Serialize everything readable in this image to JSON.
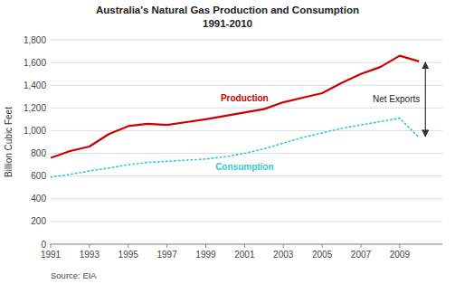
{
  "chart_data": {
    "type": "line",
    "title": "Australia's Natural Gas Production and Consumption",
    "subtitle": "1991-2010",
    "y_label": "Billion Cubic Feet",
    "source": "Source: EIA",
    "x": [
      1991,
      1992,
      1993,
      1994,
      1995,
      1996,
      1997,
      1998,
      1999,
      2000,
      2001,
      2002,
      2003,
      2004,
      2005,
      2006,
      2007,
      2008,
      2009,
      2010
    ],
    "series": [
      {
        "name": "Production",
        "color": "#CC0000",
        "line_style": "solid",
        "values": [
          760,
          820,
          860,
          970,
          1040,
          1060,
          1050,
          1075,
          1100,
          1130,
          1160,
          1190,
          1250,
          1290,
          1330,
          1420,
          1500,
          1560,
          1660,
          1610
        ]
      },
      {
        "name": "Consumption",
        "color": "#33CCCC",
        "line_style": "dotted",
        "values": [
          590,
          615,
          645,
          670,
          700,
          720,
          730,
          740,
          750,
          770,
          800,
          840,
          890,
          940,
          980,
          1020,
          1050,
          1080,
          1110,
          940
        ]
      }
    ],
    "annotations": [
      {
        "text": "Net Exports"
      }
    ],
    "xlim": [
      1991,
      2011.2
    ],
    "xticks": [
      1991,
      1993,
      1995,
      1997,
      1999,
      2001,
      2003,
      2005,
      2007,
      2009
    ],
    "ylim": [
      0,
      1800
    ],
    "yticks": [
      0,
      200,
      400,
      600,
      800,
      {
        "value": 1000,
        "label": "1,000"
      },
      {
        "value": 1200,
        "label": "1,200"
      },
      {
        "value": 1400,
        "label": "1,400"
      },
      {
        "value": 1600,
        "label": "1,600"
      },
      {
        "value": 1800,
        "label": "1,800"
      }
    ],
    "grid": true
  }
}
